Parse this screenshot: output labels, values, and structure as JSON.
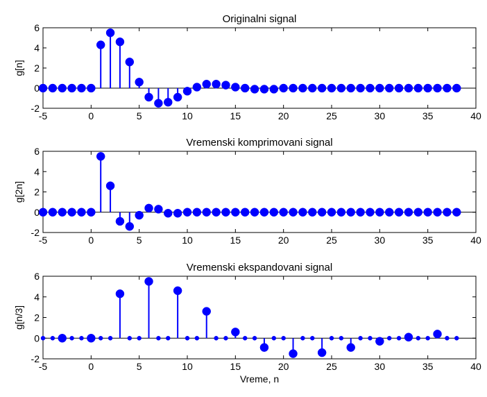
{
  "colors": {
    "series": "#0000ff",
    "axis": "#000000",
    "baseline": "#000000",
    "background": "#ffffff"
  },
  "chart_data": [
    {
      "type": "stem",
      "title": "Originalni signal",
      "xlabel": "",
      "ylabel": "g[n]",
      "xlim": [
        -5,
        40
      ],
      "ylim": [
        -2,
        6
      ],
      "xticks": [
        "-5",
        "0",
        "5",
        "10",
        "15",
        "20",
        "25",
        "30",
        "35",
        "40"
      ],
      "yticks": [
        "-2",
        "0",
        "2",
        "4",
        "6"
      ],
      "grid": false,
      "x": [
        -5,
        -4,
        -3,
        -2,
        -1,
        0,
        1,
        2,
        3,
        4,
        5,
        6,
        7,
        8,
        9,
        10,
        11,
        12,
        13,
        14,
        15,
        16,
        17,
        18,
        19,
        20,
        21,
        22,
        23,
        24,
        25,
        26,
        27,
        28,
        29,
        30,
        31,
        32,
        33,
        34,
        35,
        36,
        37,
        38
      ],
      "y": [
        0,
        0,
        0,
        0,
        0,
        0,
        4.3,
        5.5,
        4.6,
        2.6,
        0.6,
        -0.9,
        -1.5,
        -1.4,
        -0.9,
        -0.3,
        0.1,
        0.4,
        0.4,
        0.3,
        0.1,
        0,
        -0.1,
        -0.1,
        -0.1,
        0,
        0,
        0,
        0,
        0,
        0,
        0,
        0,
        0,
        0,
        0,
        0,
        0,
        0,
        0,
        0,
        0,
        0,
        0
      ],
      "marker_sizes": []
    },
    {
      "type": "stem",
      "title": "Vremenski komprimovani signal",
      "xlabel": "",
      "ylabel": "g[2n]",
      "xlim": [
        -5,
        40
      ],
      "ylim": [
        -2,
        6
      ],
      "xticks": [
        "-5",
        "0",
        "5",
        "10",
        "15",
        "20",
        "25",
        "30",
        "35",
        "40"
      ],
      "yticks": [
        "-2",
        "0",
        "2",
        "4",
        "6"
      ],
      "grid": false,
      "x": [
        -5,
        -4,
        -3,
        -2,
        -1,
        0,
        1,
        2,
        3,
        4,
        5,
        6,
        7,
        8,
        9,
        10,
        11,
        12,
        13,
        14,
        15,
        16,
        17,
        18,
        19,
        20,
        21,
        22,
        23,
        24,
        25,
        26,
        27,
        28,
        29,
        30,
        31,
        32,
        33,
        34,
        35,
        36,
        37,
        38
      ],
      "y": [
        0,
        0,
        0,
        0,
        0,
        0,
        5.5,
        2.6,
        -0.9,
        -1.4,
        -0.3,
        0.4,
        0.3,
        -0.1,
        -0.1,
        0,
        0,
        0,
        0,
        0,
        0,
        0,
        0,
        0,
        0,
        0,
        0,
        0,
        0,
        0,
        0,
        0,
        0,
        0,
        0,
        0,
        0,
        0,
        0,
        0,
        0,
        0,
        0,
        0
      ]
    },
    {
      "type": "stem",
      "title": "Vremenski ekspandovani signal",
      "xlabel": "Vreme, n",
      "ylabel": "g[n/3]",
      "xlim": [
        -5,
        40
      ],
      "ylim": [
        -2,
        6
      ],
      "xticks": [
        "-5",
        "0",
        "5",
        "10",
        "15",
        "20",
        "25",
        "30",
        "35",
        "40"
      ],
      "yticks": [
        "-2",
        "0",
        "2",
        "4",
        "6"
      ],
      "grid": false,
      "x": [
        -5,
        -4,
        -3,
        -2,
        -1,
        0,
        1,
        2,
        3,
        4,
        5,
        6,
        7,
        8,
        9,
        10,
        11,
        12,
        13,
        14,
        15,
        16,
        17,
        18,
        19,
        20,
        21,
        22,
        23,
        24,
        25,
        26,
        27,
        28,
        29,
        30,
        31,
        32,
        33,
        34,
        35,
        36,
        37,
        38
      ],
      "y": [
        0,
        0,
        0,
        0,
        0,
        0,
        0,
        0,
        4.3,
        0,
        0,
        5.5,
        0,
        0,
        4.6,
        0,
        0,
        2.6,
        0,
        0,
        0.6,
        0,
        0,
        -0.9,
        0,
        0,
        -1.5,
        0,
        0,
        -1.4,
        0,
        0,
        -0.9,
        0,
        0,
        -0.3,
        0,
        0,
        0.1,
        0,
        0,
        0.4,
        0,
        0
      ],
      "x_compact": [
        -5,
        -4,
        -3,
        -2,
        -1,
        0,
        1,
        2,
        3,
        4,
        5,
        6,
        7,
        8,
        9,
        10,
        11,
        12,
        13,
        14,
        15,
        16,
        17,
        18,
        19,
        20,
        21,
        22,
        23,
        24,
        25,
        26,
        27,
        28,
        29,
        30,
        31,
        32,
        33,
        34,
        35,
        36,
        37,
        38
      ]
    }
  ]
}
